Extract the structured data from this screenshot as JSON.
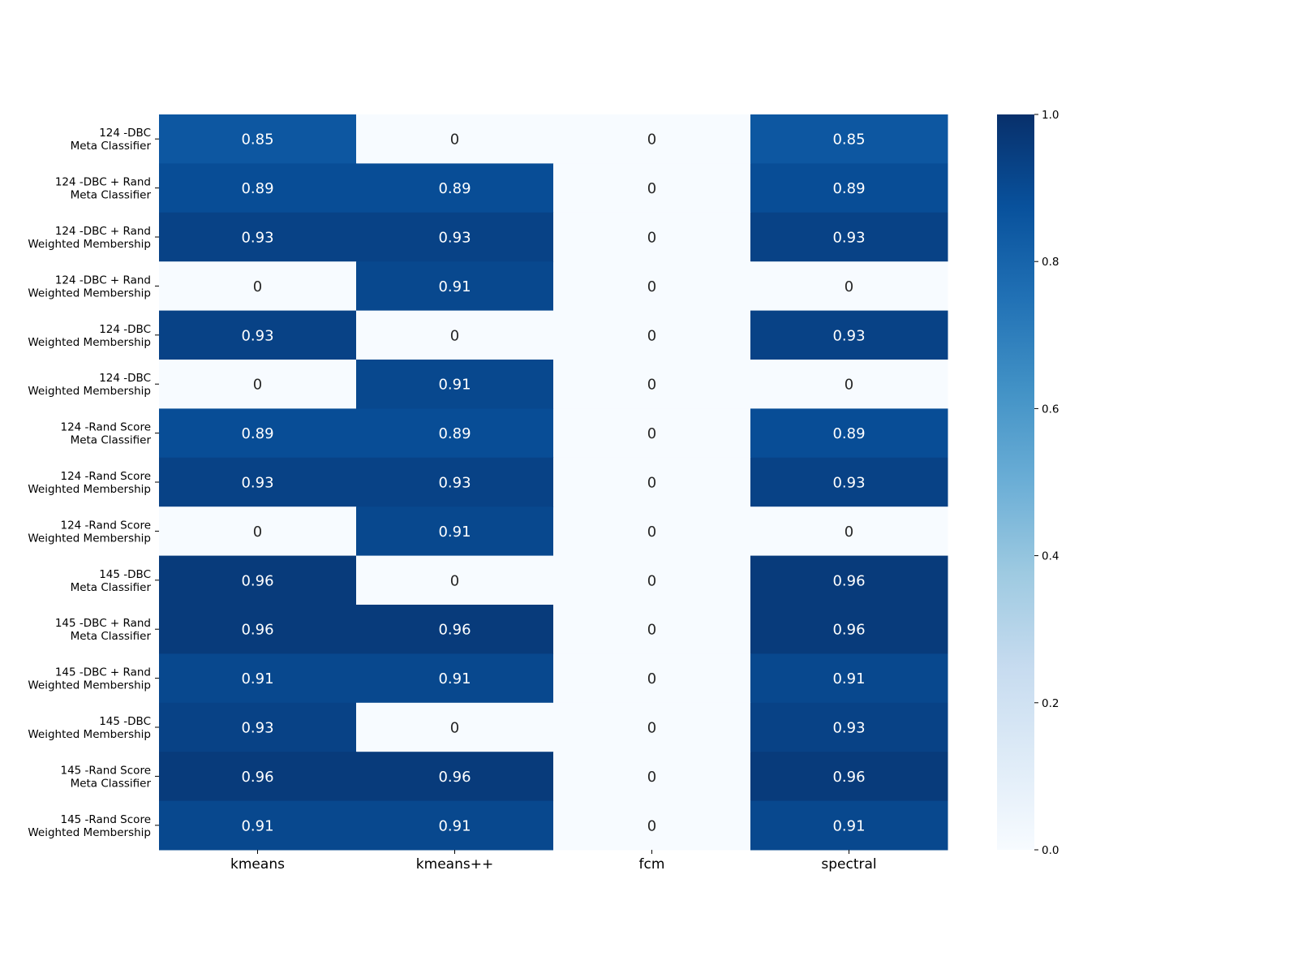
{
  "chart_data": {
    "type": "heatmap",
    "title": "",
    "xlabel": "",
    "ylabel": "",
    "columns": [
      "kmeans",
      "kmeans++",
      "fcm",
      "spectral"
    ],
    "rows": [
      {
        "line1": "124 -DBC",
        "line2": "Meta Classifier"
      },
      {
        "line1": "124 -DBC + Rand",
        "line2": "Meta Classifier"
      },
      {
        "line1": "124 -DBC + Rand",
        "line2": "Weighted Membership"
      },
      {
        "line1": "124 -DBC + Rand",
        "line2": "Weighted Membership"
      },
      {
        "line1": "124 -DBC",
        "line2": "Weighted Membership"
      },
      {
        "line1": "124 -DBC",
        "line2": "Weighted Membership"
      },
      {
        "line1": "124 -Rand Score",
        "line2": "Meta Classifier"
      },
      {
        "line1": "124 -Rand Score",
        "line2": "Weighted Membership"
      },
      {
        "line1": "124 -Rand Score",
        "line2": "Weighted Membership"
      },
      {
        "line1": "145 -DBC",
        "line2": "Meta Classifier"
      },
      {
        "line1": "145 -DBC + Rand",
        "line2": "Meta Classifier"
      },
      {
        "line1": "145 -DBC + Rand",
        "line2": "Weighted Membership"
      },
      {
        "line1": "145 -DBC",
        "line2": "Weighted Membership"
      },
      {
        "line1": "145 -Rand Score",
        "line2": "Meta Classifier"
      },
      {
        "line1": "145 -Rand Score",
        "line2": "Weighted Membership"
      }
    ],
    "values": [
      [
        0.85,
        0,
        0,
        0.85
      ],
      [
        0.89,
        0.89,
        0,
        0.89
      ],
      [
        0.93,
        0.93,
        0,
        0.93
      ],
      [
        0,
        0.91,
        0,
        0
      ],
      [
        0.93,
        0,
        0,
        0.93
      ],
      [
        0,
        0.91,
        0,
        0
      ],
      [
        0.89,
        0.89,
        0,
        0.89
      ],
      [
        0.93,
        0.93,
        0,
        0.93
      ],
      [
        0,
        0.91,
        0,
        0
      ],
      [
        0.96,
        0,
        0,
        0.96
      ],
      [
        0.96,
        0.96,
        0,
        0.96
      ],
      [
        0.91,
        0.91,
        0,
        0.91
      ],
      [
        0.93,
        0,
        0,
        0.93
      ],
      [
        0.96,
        0.96,
        0,
        0.96
      ],
      [
        0.91,
        0.91,
        0,
        0.91
      ]
    ],
    "value_labels": [
      [
        "0.85",
        "0",
        "0",
        "0.85"
      ],
      [
        "0.89",
        "0.89",
        "0",
        "0.89"
      ],
      [
        "0.93",
        "0.93",
        "0",
        "0.93"
      ],
      [
        "0",
        "0.91",
        "0",
        "0"
      ],
      [
        "0.93",
        "0",
        "0",
        "0.93"
      ],
      [
        "0",
        "0.91",
        "0",
        "0"
      ],
      [
        "0.89",
        "0.89",
        "0",
        "0.89"
      ],
      [
        "0.93",
        "0.93",
        "0",
        "0.93"
      ],
      [
        "0",
        "0.91",
        "0",
        "0"
      ],
      [
        "0.96",
        "0",
        "0",
        "0.96"
      ],
      [
        "0.96",
        "0.96",
        "0",
        "0.96"
      ],
      [
        "0.91",
        "0.91",
        "0",
        "0.91"
      ],
      [
        "0.93",
        "0",
        "0",
        "0.93"
      ],
      [
        "0.96",
        "0.96",
        "0",
        "0.96"
      ],
      [
        "0.91",
        "0.91",
        "0",
        "0.91"
      ]
    ],
    "colormap": "Blues",
    "colorbar": {
      "range": [
        0.0,
        1.0
      ],
      "ticks": [
        {
          "value": 0.0,
          "label": "0.0"
        },
        {
          "value": 0.2,
          "label": "0.2"
        },
        {
          "value": 0.4,
          "label": "0.4"
        },
        {
          "value": 0.6,
          "label": "0.6"
        },
        {
          "value": 0.8,
          "label": "0.8"
        },
        {
          "value": 1.0,
          "label": "1.0"
        }
      ]
    },
    "grid": false,
    "legend": "colorbar-right"
  }
}
